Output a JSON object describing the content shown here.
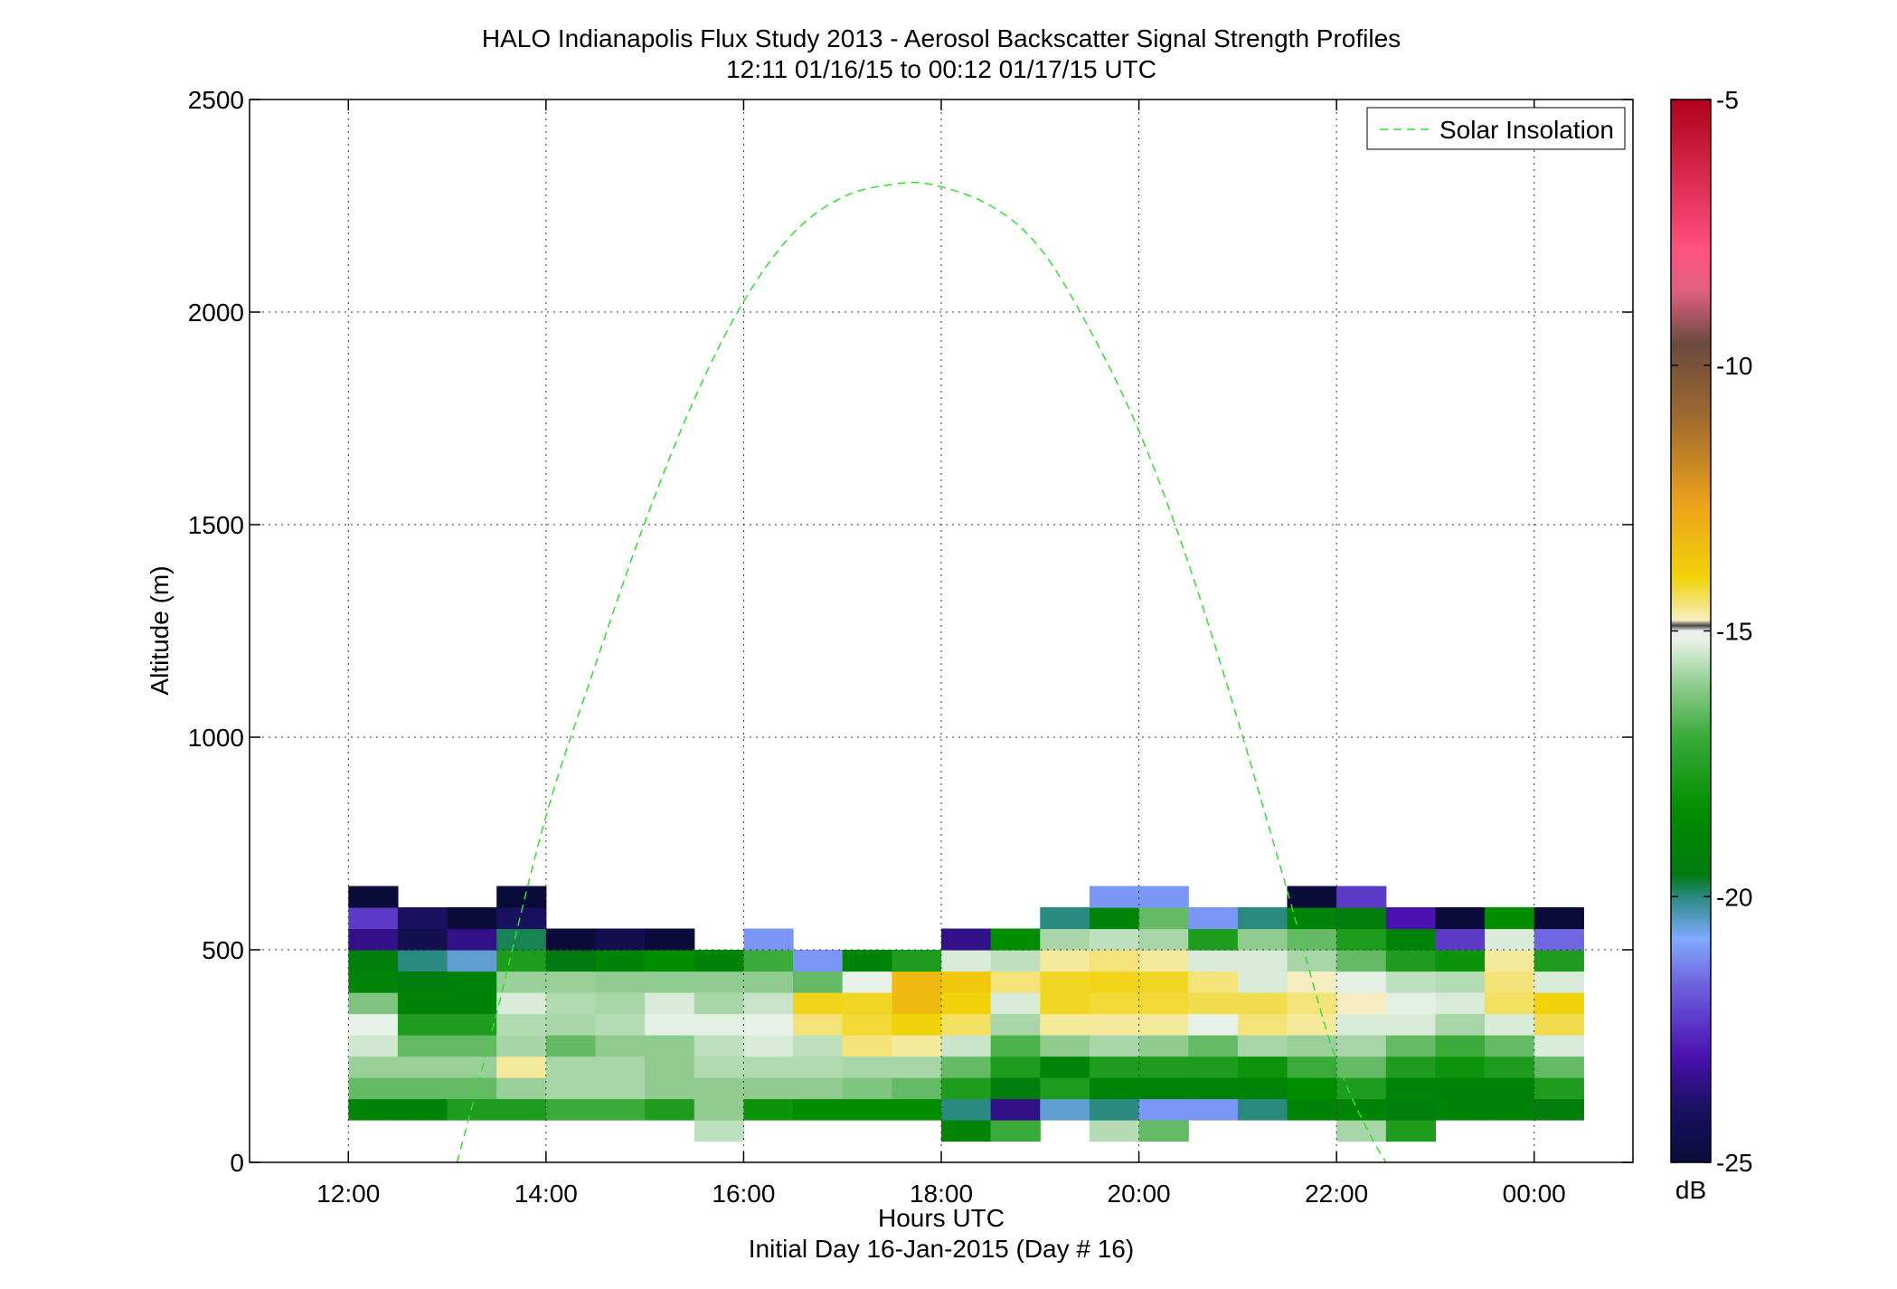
{
  "chart_data": {
    "type": "heatmap",
    "title": "HALO Indianapolis Flux Study 2013 - Aerosol Backscatter Signal Strength Profiles",
    "subtitle": "12:11 01/16/15 to 00:12 01/17/15  UTC",
    "xlabel": "Hours UTC",
    "xlabel2": "Initial Day 16-Jan-2015 (Day # 16)",
    "ylabel": "Altitude (m)",
    "colorbar_label": "dB",
    "xlim": [
      11,
      25
    ],
    "ylim": [
      0,
      2500
    ],
    "xticks": [
      12,
      14,
      16,
      18,
      20,
      22,
      24
    ],
    "xtick_labels": [
      "12:00",
      "14:00",
      "16:00",
      "18:00",
      "20:00",
      "22:00",
      "00:00"
    ],
    "yticks": [
      0,
      500,
      1000,
      1500,
      2000,
      2500
    ],
    "ytick_labels": [
      "0",
      "500",
      "1000",
      "1500",
      "2000",
      "2500"
    ],
    "clim": [
      -25,
      -5
    ],
    "cticks": [
      -25,
      -20,
      -15,
      -10,
      -5
    ],
    "ctick_labels": [
      "-25",
      "-20",
      "-15",
      "-10",
      "-5"
    ],
    "grid": true,
    "legend_position": "top-right",
    "time_bin_hours": 0.5,
    "alt_bin_m": 50,
    "columns": [
      {
        "t": 12.25,
        "bottom": 100,
        "values": [
          -19.5,
          -17.5,
          -16.8,
          -15.7,
          -15.2,
          -17.2,
          -19.5,
          -19.8,
          -23.5,
          -22.5,
          -25
        ]
      },
      {
        "t": 12.75,
        "bottom": 100,
        "values": [
          -19.5,
          -17.5,
          -16.8,
          -17.5,
          -18.5,
          -19.5,
          -19.8,
          -20.5,
          -24.5,
          -24,
          null
        ]
      },
      {
        "t": 13.25,
        "bottom": 100,
        "values": [
          -18.5,
          -17.5,
          -16.8,
          -17.5,
          -18.5,
          -19.5,
          -19.5,
          -21,
          -23.5,
          -25,
          null
        ]
      },
      {
        "t": 13.75,
        "bottom": 100,
        "values": [
          -18.5,
          -16.8,
          -14.5,
          -16.5,
          -16.3,
          -15.5,
          -16.8,
          -18.5,
          -20.3,
          -24,
          -25
        ]
      },
      {
        "t": 14.25,
        "bottom": 100,
        "values": [
          -18,
          -16.5,
          -16.5,
          -17.5,
          -16.5,
          -16.3,
          -16.8,
          -20,
          -25,
          null,
          null
        ]
      },
      {
        "t": 14.75,
        "bottom": 100,
        "values": [
          -18,
          -16.5,
          -16.5,
          -17,
          -16.2,
          -16.5,
          -17,
          -19.5,
          -24.5,
          null,
          null
        ]
      },
      {
        "t": 15.25,
        "bottom": 100,
        "values": [
          -18.5,
          -17,
          -17,
          -17,
          -15.3,
          -15.5,
          -17,
          -19,
          -25,
          null,
          null
        ]
      },
      {
        "t": 15.75,
        "bottom": 50,
        "values": [
          -16,
          -17,
          -17,
          -16.3,
          -16,
          -15.3,
          -16.5,
          -17,
          -19.5,
          null,
          null,
          null
        ]
      },
      {
        "t": 16.25,
        "bottom": 100,
        "values": [
          -18.8,
          -17,
          -16.3,
          -15.5,
          -15.2,
          -15.8,
          -17,
          -18,
          -21.5,
          null,
          null
        ]
      },
      {
        "t": 16.75,
        "bottom": 100,
        "values": [
          -19,
          -17,
          -16.3,
          -16,
          -14.2,
          -13.2,
          -17.5,
          -21.5,
          null,
          null,
          null
        ]
      },
      {
        "t": 17.25,
        "bottom": 100,
        "values": [
          -19,
          -17.2,
          -16.5,
          -14.2,
          -13.5,
          -13.3,
          -15.2,
          -19.5,
          null,
          null,
          null
        ]
      },
      {
        "t": 17.75,
        "bottom": 100,
        "values": [
          -19,
          -17.5,
          -16.5,
          -14.5,
          -13,
          -12.5,
          -12.5,
          -18.5,
          null,
          null,
          null
        ]
      },
      {
        "t": 18.25,
        "bottom": 50,
        "values": [
          -19.5,
          -20.5,
          -18.5,
          -17.5,
          -15.8,
          -14,
          -13,
          -12.8,
          -15.5,
          -23.5,
          null,
          null
        ]
      },
      {
        "t": 18.75,
        "bottom": 50,
        "values": [
          -18,
          -23.5,
          -19.8,
          -18.5,
          -17.8,
          -16.5,
          -15.5,
          -14.2,
          -16,
          -19,
          null,
          null
        ]
      },
      {
        "t": 19.25,
        "bottom": 100,
        "values": [
          -21,
          -18.5,
          -19.5,
          -17,
          -14.5,
          -13.3,
          -13.3,
          -14.5,
          -16.5,
          -20.5,
          null
        ]
      },
      {
        "t": 19.75,
        "bottom": 50,
        "values": [
          -16.2,
          -20.5,
          -19.5,
          -18.5,
          -16.5,
          -14.5,
          -13.5,
          -13.2,
          -14.2,
          -16,
          -19.5,
          -21.5
        ]
      },
      {
        "t": 20.25,
        "bottom": 50,
        "values": [
          -17.5,
          -21.5,
          -19.5,
          -18.5,
          -17,
          -14.5,
          -13.5,
          -13.3,
          -14.5,
          -16.5,
          -17.5,
          -21.5
        ]
      },
      {
        "t": 20.75,
        "bottom": 100,
        "values": [
          -21.5,
          -19.5,
          -18.5,
          -17.5,
          -15.2,
          -13.8,
          -14.2,
          -15.5,
          -18.5,
          -21.5,
          null
        ]
      },
      {
        "t": 21.25,
        "bottom": 100,
        "values": [
          -20.5,
          -19.5,
          -18.8,
          -16.5,
          -14.2,
          -13.8,
          -15.5,
          -15.5,
          -17,
          -20.5,
          null
        ]
      },
      {
        "t": 21.75,
        "bottom": 100,
        "values": [
          -19.5,
          -19,
          -18,
          -16.8,
          -14.5,
          -14.2,
          -14.8,
          -16.5,
          -17.5,
          -19.5,
          -25
        ]
      },
      {
        "t": 22.25,
        "bottom": 50,
        "values": [
          -16.5,
          -19.5,
          -18.5,
          -17.5,
          -16.5,
          -15.5,
          -14.8,
          -15.3,
          -17.5,
          -18.5,
          -19.8,
          -22.5
        ]
      },
      {
        "t": 22.75,
        "bottom": 50,
        "values": [
          -18.5,
          -19.8,
          -19.5,
          -18.5,
          -17.5,
          -15.5,
          -15.3,
          -16,
          -18.5,
          -19.5,
          -23,
          null
        ]
      },
      {
        "t": 23.25,
        "bottom": 100,
        "values": [
          -19.5,
          -19.5,
          -18.8,
          -18,
          -16.5,
          -15.5,
          -16.2,
          -18.8,
          -22.5,
          -25,
          null
        ]
      },
      {
        "t": 23.75,
        "bottom": 100,
        "values": [
          -19.5,
          -19.5,
          -18.5,
          -17.5,
          -15.5,
          -14,
          -14.2,
          -14.5,
          -15.5,
          -19,
          null
        ]
      },
      {
        "t": 24.25,
        "bottom": 100,
        "values": [
          -19.8,
          -18.5,
          -17.5,
          -15.5,
          -13.8,
          -13,
          -15.5,
          -18.5,
          -22,
          -25,
          null
        ]
      }
    ],
    "series": [
      {
        "name": "Solar Insolation",
        "type": "line",
        "style": "dashed",
        "color": "#33dd33",
        "x": [
          13.1,
          13.5,
          14.0,
          14.5,
          15.0,
          15.5,
          16.0,
          16.5,
          17.0,
          17.5,
          17.9,
          18.5,
          19.0,
          19.5,
          20.0,
          20.5,
          21.0,
          21.5,
          22.0,
          22.5,
          22.65
        ],
        "y": [
          0,
          350,
          815,
          1170,
          1505,
          1795,
          2025,
          2185,
          2270,
          2300,
          2300,
          2250,
          2150,
          1960,
          1720,
          1410,
          1040,
          640,
          240,
          0,
          0
        ]
      }
    ]
  }
}
